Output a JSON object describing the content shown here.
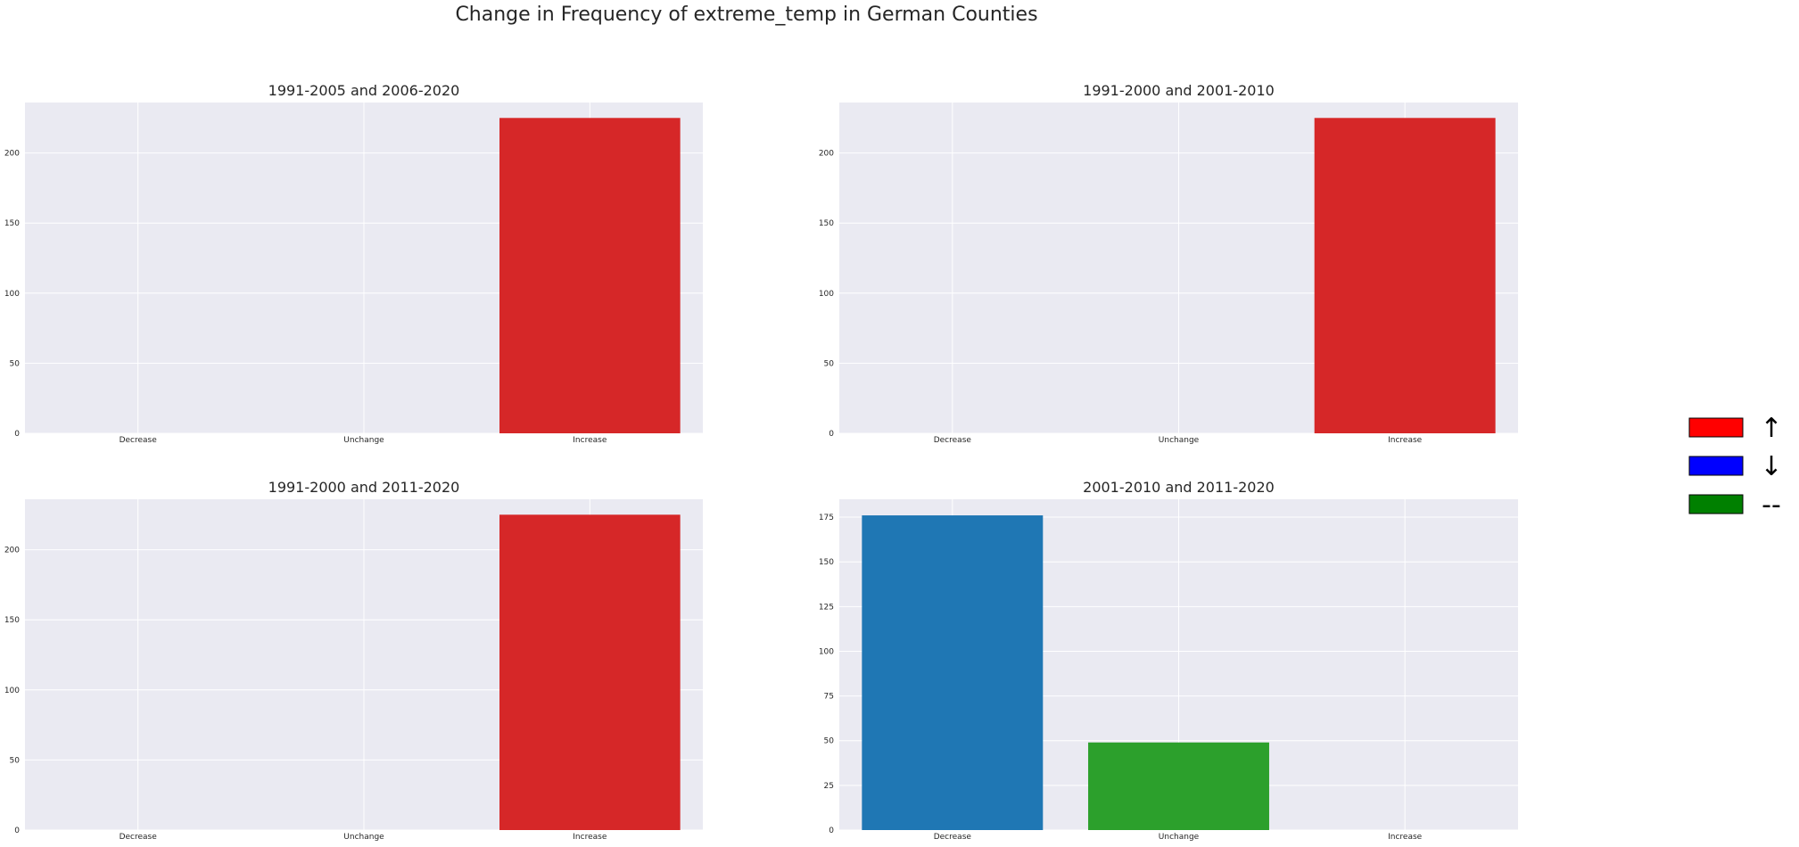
{
  "figure": {
    "title": "Change in Frequency of extreme_temp in German Counties"
  },
  "chart_data": [
    {
      "type": "bar",
      "title": "1991-2005 and 2006-2020",
      "categories": [
        "Decrease",
        "Unchange",
        "Increase"
      ],
      "values": [
        0,
        0,
        225
      ],
      "colors": [
        "#1f77b4",
        "#2ca02c",
        "#d62728"
      ],
      "ylim": [
        0,
        236
      ],
      "yticks": [
        0,
        50,
        100,
        150,
        200
      ],
      "grid": true
    },
    {
      "type": "bar",
      "title": "1991-2000 and 2001-2010",
      "categories": [
        "Decrease",
        "Unchange",
        "Increase"
      ],
      "values": [
        0,
        0,
        225
      ],
      "colors": [
        "#1f77b4",
        "#2ca02c",
        "#d62728"
      ],
      "ylim": [
        0,
        236
      ],
      "yticks": [
        0,
        50,
        100,
        150,
        200
      ],
      "grid": true
    },
    {
      "type": "bar",
      "title": "1991-2000 and 2011-2020",
      "categories": [
        "Decrease",
        "Unchange",
        "Increase"
      ],
      "values": [
        0,
        0,
        225
      ],
      "colors": [
        "#1f77b4",
        "#2ca02c",
        "#d62728"
      ],
      "ylim": [
        0,
        236
      ],
      "yticks": [
        0,
        50,
        100,
        150,
        200
      ],
      "grid": true
    },
    {
      "type": "bar",
      "title": "2001-2010 and 2011-2020",
      "categories": [
        "Decrease",
        "Unchange",
        "Increase"
      ],
      "values": [
        176,
        49,
        0
      ],
      "colors": [
        "#1f77b4",
        "#2ca02c",
        "#d62728"
      ],
      "ylim": [
        0,
        185
      ],
      "yticks": [
        0,
        25,
        50,
        75,
        100,
        125,
        150,
        175
      ],
      "grid": true
    }
  ],
  "legend": {
    "placement": "right",
    "items": [
      {
        "color": "#ff0000",
        "symbol": "↑"
      },
      {
        "color": "#0000ff",
        "symbol": "↓"
      },
      {
        "color": "#008000",
        "symbol": "--"
      }
    ]
  }
}
